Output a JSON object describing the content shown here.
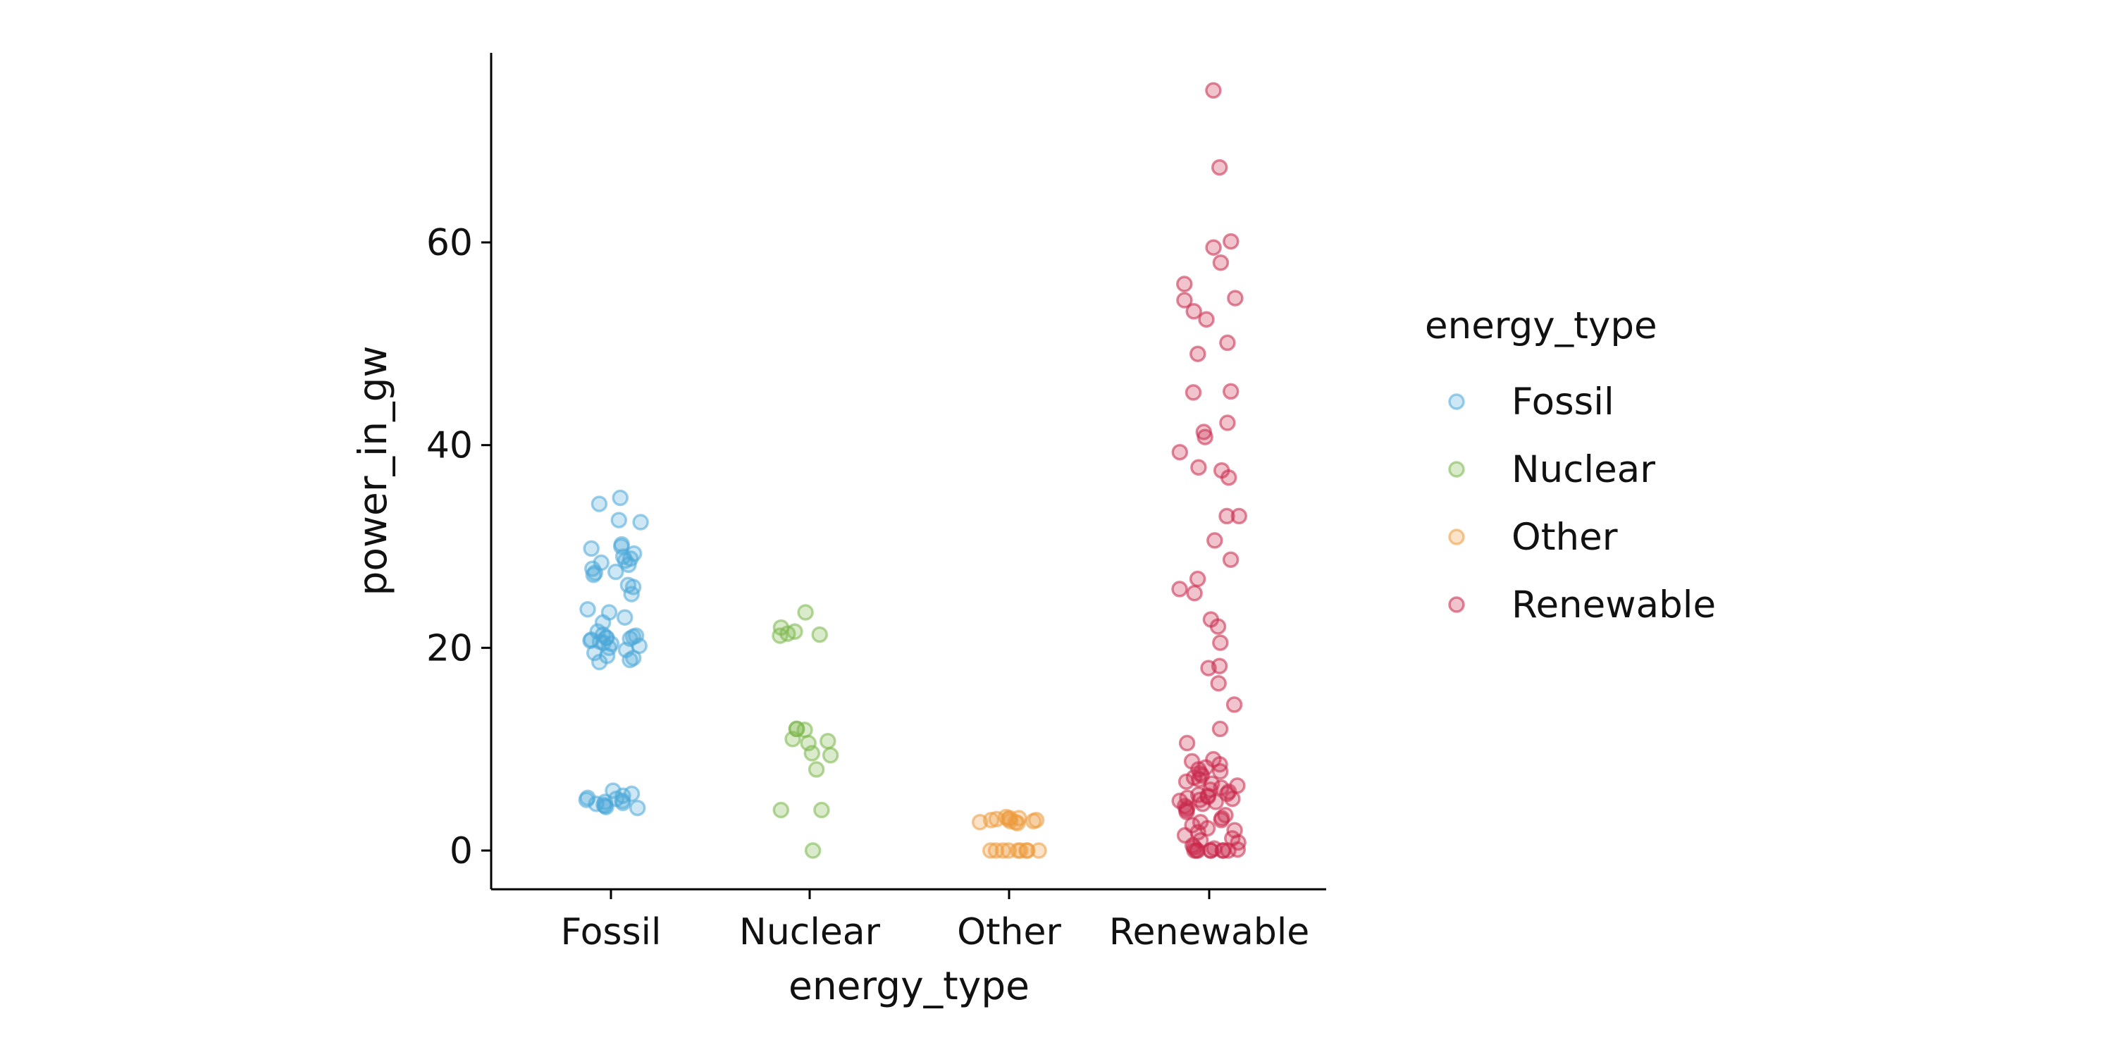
{
  "chart_data": {
    "type": "scatter",
    "title": "",
    "xlabel": "energy_type",
    "ylabel": "power_in_gw",
    "categories": [
      "Fossil",
      "Nuclear",
      "Other",
      "Renewable"
    ],
    "yticks": [
      0,
      20,
      40,
      60
    ],
    "ylim": [
      -3.5,
      78
    ],
    "grid": false,
    "legend": {
      "title": "energy_type",
      "placement": "right",
      "entries": [
        "Fossil",
        "Nuclear",
        "Other",
        "Renewable"
      ]
    },
    "colors": {
      "Fossil": "#4aa8d8",
      "Nuclear": "#7ab648",
      "Other": "#ec9a3c",
      "Renewable": "#c9284a"
    },
    "series": [
      {
        "name": "Fossil",
        "values": [
          34.8,
          34.2,
          32.6,
          32.4,
          30.2,
          30.0,
          29.8,
          29.3,
          29.0,
          28.8,
          28.6,
          28.4,
          28.2,
          27.8,
          27.5,
          27.4,
          27.2,
          26.2,
          26.0,
          25.3,
          23.8,
          23.5,
          23.0,
          22.5,
          21.6,
          21.3,
          21.2,
          21.1,
          21.0,
          21.0,
          20.9,
          20.8,
          20.7,
          20.6,
          20.5,
          20.4,
          20.2,
          20.0,
          19.8,
          19.5,
          19.2,
          19.0,
          18.8,
          18.6,
          5.9,
          5.6,
          5.4,
          5.2,
          5.1,
          5.0,
          4.9,
          4.8,
          4.7,
          4.6,
          4.5,
          4.4,
          4.3,
          4.2
        ]
      },
      {
        "name": "Nuclear",
        "values": [
          23.5,
          22.0,
          21.6,
          21.4,
          21.3,
          21.2,
          12.0,
          12.0,
          11.9,
          11.0,
          10.8,
          10.6,
          9.6,
          9.4,
          8.0,
          4.0,
          4.0,
          0.0
        ]
      },
      {
        "name": "Other",
        "values": [
          3.3,
          3.2,
          3.2,
          3.1,
          3.1,
          3.0,
          3.0,
          2.9,
          2.9,
          2.8,
          2.8,
          2.7,
          0.0,
          0.0,
          0.0,
          0.0,
          0.0,
          0.0,
          0.0,
          0.0,
          0.0
        ]
      },
      {
        "name": "Renewable",
        "values": [
          75.0,
          67.4,
          60.1,
          59.5,
          58.0,
          55.9,
          54.5,
          54.3,
          53.2,
          52.4,
          50.1,
          49.0,
          45.3,
          45.2,
          42.2,
          41.3,
          40.8,
          39.3,
          37.8,
          37.5,
          36.8,
          33.0,
          33.0,
          30.6,
          28.7,
          26.8,
          25.8,
          25.4,
          22.8,
          22.1,
          20.5,
          18.2,
          18.0,
          16.5,
          14.4,
          12.0,
          10.6,
          9.0,
          8.8,
          8.5,
          8.2,
          8.0,
          7.8,
          7.6,
          7.4,
          7.2,
          7.0,
          6.8,
          6.6,
          6.4,
          6.2,
          6.0,
          5.8,
          5.6,
          5.5,
          5.4,
          5.3,
          5.2,
          5.1,
          5.0,
          4.9,
          4.8,
          4.6,
          4.4,
          4.2,
          4.0,
          3.8,
          3.5,
          3.2,
          3.0,
          2.8,
          2.5,
          2.2,
          2.0,
          1.8,
          1.5,
          1.2,
          1.0,
          0.8,
          0.5,
          0.3,
          0.2,
          0.1,
          0.0,
          0.0,
          0.0,
          0.0,
          0.0,
          0.0,
          0.0,
          0.0
        ]
      }
    ]
  }
}
